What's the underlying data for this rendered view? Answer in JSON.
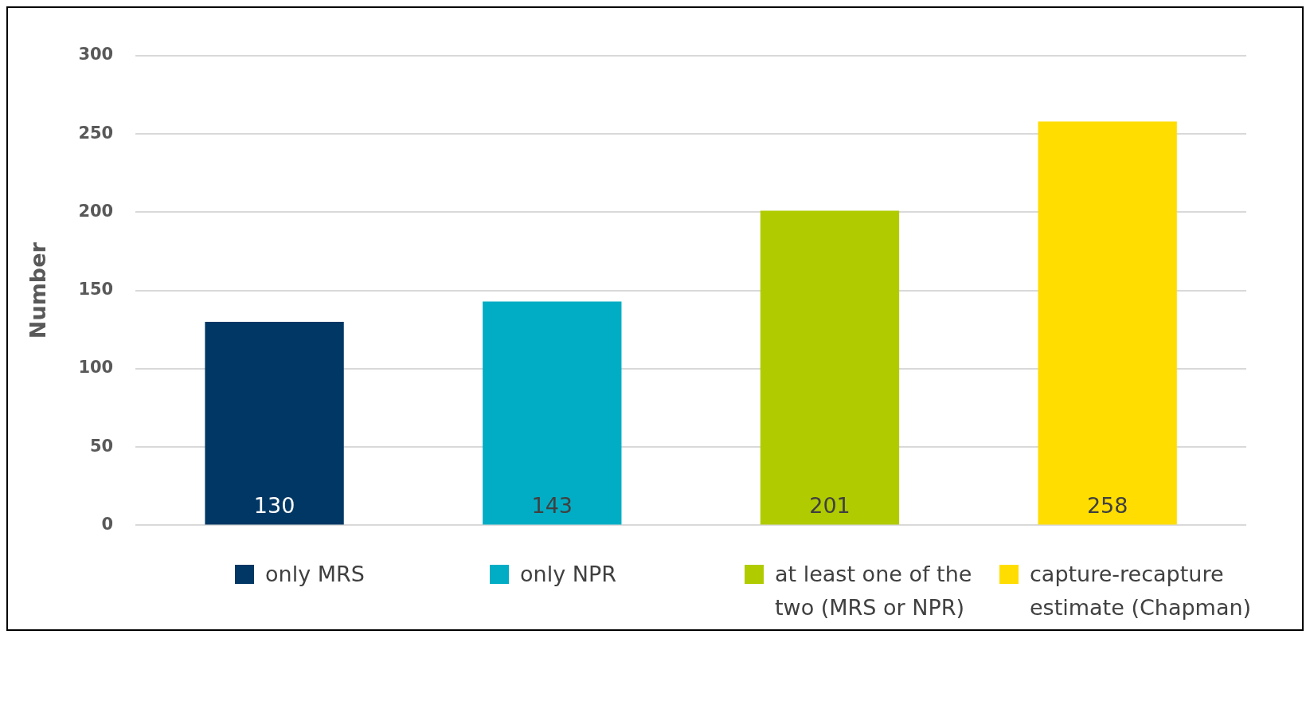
{
  "chart_data": {
    "type": "bar",
    "ylabel": "Number",
    "categories": [
      null,
      null,
      null,
      null
    ],
    "series": [
      {
        "name": "only MRS",
        "color": "#003764",
        "values": [
          130,
          null,
          null,
          null
        ]
      },
      {
        "name": "only NPR",
        "color": "#00adc4",
        "values": [
          null,
          143,
          null,
          null
        ]
      },
      {
        "name": "at least one of the two (MRS or NPR)",
        "color": "#b0cb00",
        "values": [
          null,
          null,
          201,
          null
        ]
      },
      {
        "name": "capture-recapture estimate (Chapman)",
        "color": "#ffdd00",
        "values": [
          null,
          null,
          null,
          258
        ]
      }
    ],
    "ylim": [
      0,
      300
    ],
    "yticks": [
      0,
      50,
      100,
      150,
      200,
      250,
      300
    ],
    "grid": "y",
    "legend": "bottom",
    "tick_labels": "y",
    "data_labels": true
  }
}
